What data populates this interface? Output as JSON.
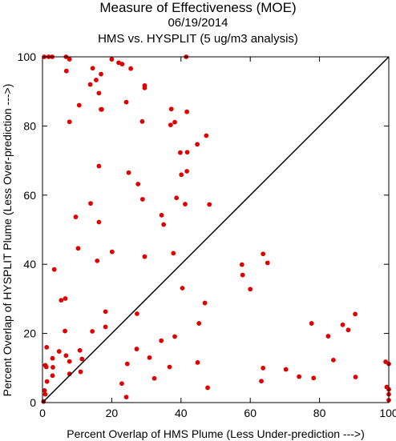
{
  "chart_data": {
    "type": "scatter",
    "title": "Measure of Effectiveness (MOE)",
    "subtitle_date": "06/19/2014",
    "subtitle_analysis": "HMS vs. HYSPLIT  (5 ug/m3 analysis)",
    "xlabel": "Percent Overlap of HMS Plume (Less Under-prediction --->)",
    "ylabel": "Percent Overlap of HYSPLIT Plume (Less Over-prediction --->)",
    "xlim": [
      0,
      100
    ],
    "ylim": [
      0,
      100
    ],
    "x_ticks": [
      "0",
      "20",
      "40",
      "60",
      "80",
      "100"
    ],
    "y_ticks": [
      "0",
      "20",
      "40",
      "60",
      "80",
      "100"
    ],
    "reference_line": "diagonal y = x",
    "marker_color": "#e00000",
    "grid": false,
    "points": [
      [
        0.5,
        100
      ],
      [
        1.8,
        100
      ],
      [
        2.8,
        100
      ],
      [
        6.8,
        100
      ],
      [
        7.8,
        99.3
      ],
      [
        6.9,
        95.9
      ],
      [
        14.5,
        96.7
      ],
      [
        16.9,
        95
      ],
      [
        15.5,
        93.3
      ],
      [
        13.8,
        92
      ],
      [
        16.3,
        89.5
      ],
      [
        20,
        99.3
      ],
      [
        22,
        98.3
      ],
      [
        23,
        97.9
      ],
      [
        25.5,
        96.6
      ],
      [
        29.5,
        91.7
      ],
      [
        29.5,
        91
      ],
      [
        41.5,
        100
      ],
      [
        10.6,
        86
      ],
      [
        24.2,
        86.9
      ],
      [
        16.9,
        84.8
      ],
      [
        17.1,
        84.8
      ],
      [
        37.2,
        84.9
      ],
      [
        41.7,
        84.1
      ],
      [
        7.8,
        81.2
      ],
      [
        28.8,
        81.3
      ],
      [
        38.2,
        81.1
      ],
      [
        37,
        80.3
      ],
      [
        47.3,
        77.2
      ],
      [
        44.7,
        74.7
      ],
      [
        41.8,
        72.4
      ],
      [
        39.8,
        72.3
      ],
      [
        16.3,
        68.4
      ],
      [
        24.9,
        66.5
      ],
      [
        41.7,
        66.9
      ],
      [
        40.1,
        65.9
      ],
      [
        27.6,
        63.2
      ],
      [
        28.9,
        58.8
      ],
      [
        38.7,
        59.2
      ],
      [
        41.2,
        57.4
      ],
      [
        48.2,
        57.3
      ],
      [
        13.9,
        57.6
      ],
      [
        9.6,
        53.7
      ],
      [
        34.4,
        54.2
      ],
      [
        16.3,
        52.2
      ],
      [
        35,
        51.5
      ],
      [
        10.3,
        44.6
      ],
      [
        20.1,
        43.6
      ],
      [
        37.8,
        43.2
      ],
      [
        29.5,
        42.2
      ],
      [
        15.8,
        41
      ],
      [
        63.7,
        43
      ],
      [
        65,
        40.4
      ],
      [
        57.6,
        39.9
      ],
      [
        3.4,
        38.5
      ],
      [
        57.8,
        36.9
      ],
      [
        60,
        32.8
      ],
      [
        40.4,
        33.1
      ],
      [
        6.6,
        30.1
      ],
      [
        5.4,
        29.6
      ],
      [
        46.9,
        28.8
      ],
      [
        18.2,
        26.3
      ],
      [
        27.3,
        25.7
      ],
      [
        90.3,
        25.6
      ],
      [
        88.3,
        21
      ],
      [
        86.7,
        22.5
      ],
      [
        77.7,
        22.9
      ],
      [
        82.5,
        19.2
      ],
      [
        45.2,
        22.9
      ],
      [
        18.2,
        21.9
      ],
      [
        6.5,
        20.7
      ],
      [
        14.4,
        20.6
      ],
      [
        38.2,
        19.1
      ],
      [
        34.3,
        17.9
      ],
      [
        1.2,
        16
      ],
      [
        27.2,
        15.5
      ],
      [
        10.8,
        15.1
      ],
      [
        4.8,
        14.8
      ],
      [
        6.8,
        13.6
      ],
      [
        2.9,
        12.8
      ],
      [
        11.4,
        12.6
      ],
      [
        7.8,
        11.9
      ],
      [
        30.9,
        13
      ],
      [
        84,
        12.3
      ],
      [
        99.1,
        11.8
      ],
      [
        0.8,
        10.8
      ],
      [
        1.1,
        10.3
      ],
      [
        3,
        10.2
      ],
      [
        36.7,
        10.3
      ],
      [
        44.8,
        11.6
      ],
      [
        63.7,
        10
      ],
      [
        70.3,
        9.6
      ],
      [
        74.1,
        7.5
      ],
      [
        78.3,
        7.1
      ],
      [
        90.4,
        7.4
      ],
      [
        100,
        11.2
      ],
      [
        11,
        8.9
      ],
      [
        7.8,
        8.3
      ],
      [
        2.9,
        7.8
      ],
      [
        32.3,
        7
      ],
      [
        63.2,
        6.2
      ],
      [
        1.3,
        6.1
      ],
      [
        22.9,
        5.5
      ],
      [
        47.7,
        4.3
      ],
      [
        24.5,
        11.2
      ],
      [
        99.4,
        4.5
      ],
      [
        100,
        3.8
      ],
      [
        0.6,
        3.5
      ],
      [
        0.8,
        2.4
      ],
      [
        24.2,
        1.6
      ],
      [
        100,
        2.4
      ],
      [
        100,
        0.7
      ],
      [
        0.3,
        0.3
      ]
    ]
  }
}
